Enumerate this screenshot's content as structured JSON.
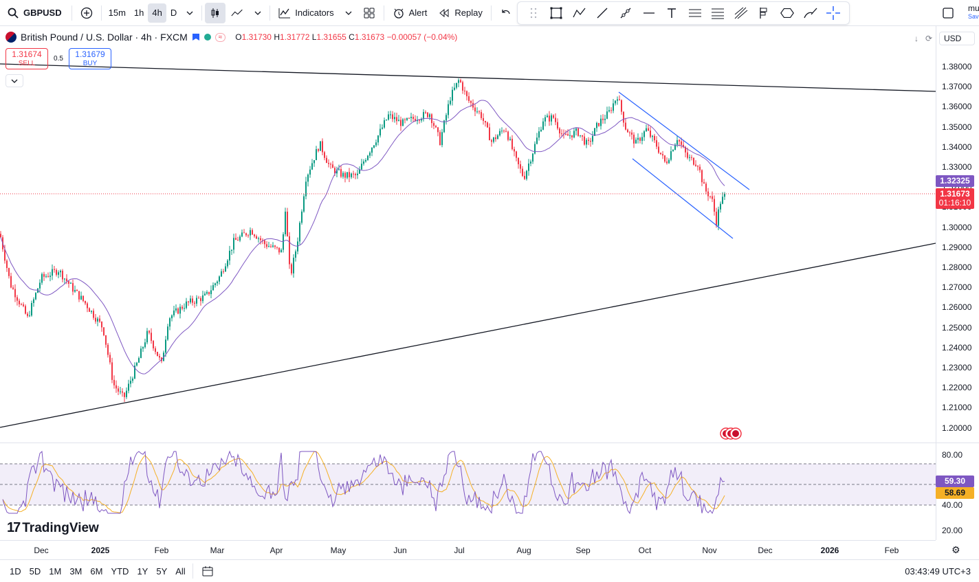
{
  "toolbar": {
    "symbol": "GBPUSD",
    "intervals": [
      "15m",
      "1h",
      "4h",
      "D"
    ],
    "active_interval": "4h",
    "indicators_label": "Indicators",
    "alert_label": "Alert",
    "replay_label": "Replay",
    "user_short": "mu",
    "save_label": "Sav"
  },
  "legend": {
    "title": "British Pound / U.S. Dollar · 4h · FXCM",
    "open_label": "O",
    "open": "1.31730",
    "high_label": "H",
    "high": "1.31772",
    "low_label": "L",
    "low": "1.31655",
    "close_label": "C",
    "close": "1.31673",
    "change": "−0.00057 (−0.04%)"
  },
  "trade": {
    "sell_price": "1.31674",
    "sell_label": "SELL",
    "spread": "0.5",
    "buy_price": "1.31679",
    "buy_label": "BUY"
  },
  "currency": "USD",
  "price_axis": [
    "1.38000",
    "1.37000",
    "1.36000",
    "1.35000",
    "1.34000",
    "1.33000",
    "1.32000",
    "1.31000",
    "1.30000",
    "1.29000",
    "1.28000",
    "1.27000",
    "1.26000",
    "1.25000",
    "1.24000",
    "1.23000",
    "1.22000",
    "1.21000",
    "1.20000"
  ],
  "tags": {
    "ma_value": "1.32325",
    "last_price": "1.31673",
    "countdown": "01:16:10",
    "rsi_value": "59.30",
    "rsi_ma_value": "58.69"
  },
  "rsi_axis": [
    "80.00",
    "40.00",
    "20.00"
  ],
  "time_axis": [
    "Dec",
    "2025",
    "Feb",
    "Mar",
    "Apr",
    "May",
    "Jun",
    "Jul",
    "Aug",
    "Sep",
    "Oct",
    "Nov",
    "Dec",
    "2026",
    "Feb"
  ],
  "ranges": [
    "1D",
    "5D",
    "1M",
    "3M",
    "6M",
    "YTD",
    "1Y",
    "5Y",
    "All"
  ],
  "clock": "03:43:49 UTC+3",
  "brand": "TradingView",
  "colors": {
    "up": "#089981",
    "down": "#f23645",
    "ma": "#7e57c2",
    "channel": "#2962ff",
    "rsi": "#7e57c2",
    "rsi_ma": "#f5b026"
  }
}
